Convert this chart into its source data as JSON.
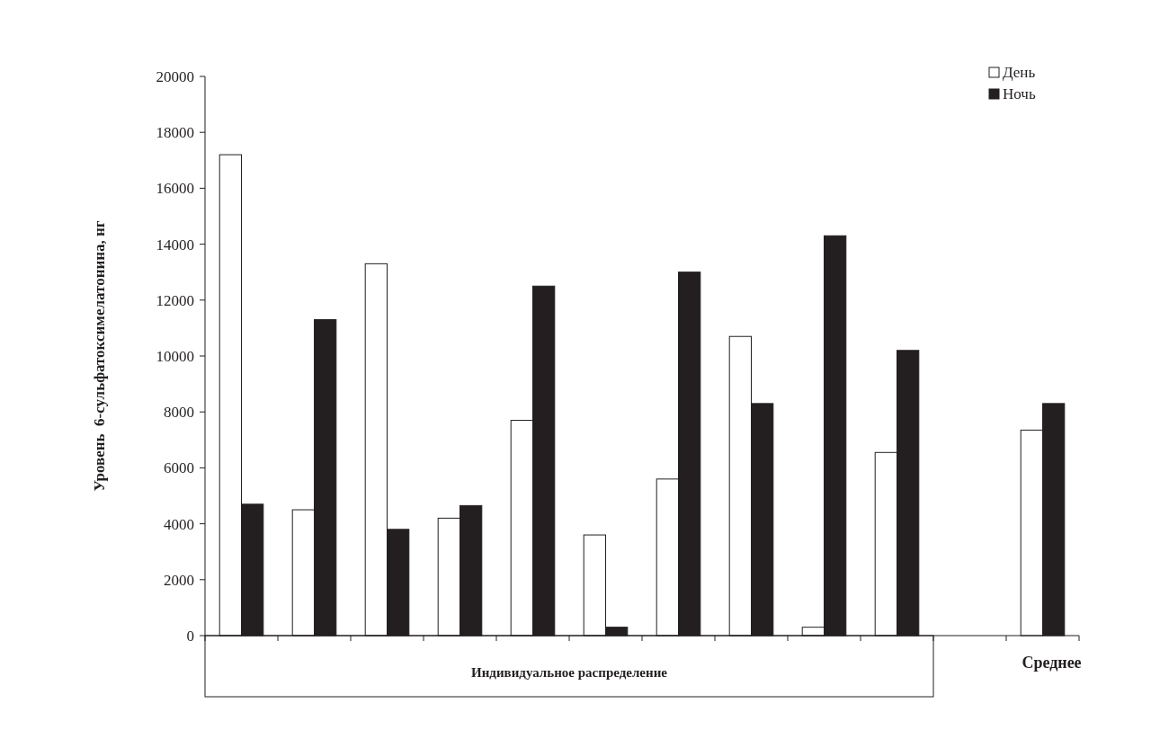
{
  "chart_data": {
    "type": "bar",
    "ylabel": "Уровень  6-сульфатоксимелатонина, нг",
    "categories": [
      null,
      null,
      null,
      null,
      null,
      null,
      null,
      null,
      null,
      null,
      null,
      "Среднее"
    ],
    "series": [
      {
        "name": "День",
        "color": "#ffffff",
        "values": [
          17200,
          4500,
          13300,
          4200,
          7700,
          3600,
          5600,
          10700,
          300,
          6550,
          null,
          7350
        ]
      },
      {
        "name": "Ночь",
        "color": "#231f20",
        "values": [
          4700,
          11300,
          3800,
          4650,
          12500,
          300,
          13000,
          8300,
          14300,
          10200,
          null,
          8300
        ]
      }
    ],
    "ylim": [
      0,
      20000
    ],
    "yticks": [
      0,
      2000,
      4000,
      6000,
      8000,
      10000,
      12000,
      14000,
      16000,
      18000,
      20000
    ],
    "grid": false,
    "legend": "top right",
    "annotations": [
      "Индивидуальное распределение"
    ]
  }
}
